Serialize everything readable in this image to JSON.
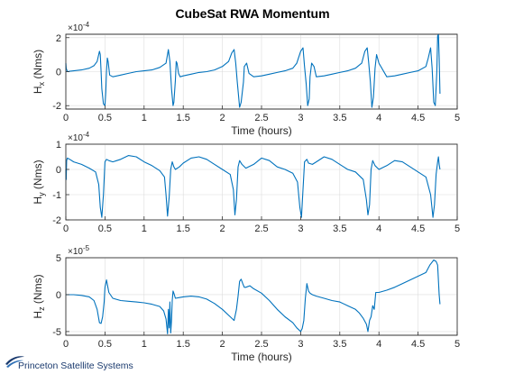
{
  "figure": {
    "title": "CubeSat RWA Momentum",
    "logo_text": "Princeton Satellite Systems",
    "line_color": "#0072bd",
    "logo_color": "#1a3a6e"
  },
  "chart_data": [
    {
      "type": "line",
      "title": "CubeSat RWA Momentum",
      "xlabel": "Time (hours)",
      "ylabel_base": "H",
      "ylabel_sub": "x",
      "ylabel_unit": "(Nms)",
      "exponent_label": "×10",
      "exponent_power": "-4",
      "xlim": [
        0,
        5
      ],
      "ylim": [
        -2.2,
        2.2
      ],
      "xticks": [
        0,
        0.5,
        1,
        1.5,
        2,
        2.5,
        3,
        3.5,
        4,
        4.5,
        5
      ],
      "xtick_labels": [
        "0",
        "0.5",
        "1",
        "1.5",
        "2",
        "2.5",
        "3",
        "3.5",
        "4",
        "4.5",
        "5"
      ],
      "yticks": [
        -2,
        0,
        2
      ],
      "ytick_labels": [
        "-2",
        "0",
        "2"
      ],
      "grid": true,
      "series": [
        {
          "x": [
            0,
            0.005,
            0.02,
            0.05,
            0.1,
            0.2,
            0.3,
            0.36,
            0.4,
            0.43,
            0.44,
            0.45,
            0.46,
            0.48,
            0.5,
            0.51,
            0.52,
            0.53,
            0.54,
            0.56,
            0.6,
            0.7,
            0.8,
            0.9,
            1.0,
            1.1,
            1.2,
            1.28,
            1.31,
            1.33,
            1.35,
            1.37,
            1.38,
            1.4,
            1.41,
            1.42,
            1.44,
            1.46,
            1.5,
            1.6,
            1.7,
            1.8,
            1.9,
            2.0,
            2.08,
            2.12,
            2.15,
            2.17,
            2.19,
            2.22,
            2.24,
            2.27,
            2.28,
            2.31,
            2.34,
            2.4,
            2.5,
            2.6,
            2.7,
            2.8,
            2.9,
            2.95,
            3.0,
            3.03,
            3.05,
            3.07,
            3.09,
            3.11,
            3.12,
            3.14,
            3.17,
            3.2,
            3.3,
            3.4,
            3.5,
            3.6,
            3.7,
            3.78,
            3.82,
            3.85,
            3.87,
            3.89,
            3.91,
            3.93,
            3.95,
            3.97,
            4.0,
            4.1,
            4.2,
            4.3,
            4.4,
            4.5,
            4.6,
            4.63,
            4.66,
            4.68,
            4.7,
            4.72,
            4.74,
            4.75,
            4.76,
            4.77,
            4.78
          ],
          "y": [
            0.5,
            0.2,
            0.0,
            0.02,
            0.05,
            0.1,
            0.2,
            0.35,
            0.6,
            1.2,
            1.0,
            0.0,
            -1.0,
            -1.9,
            -2.0,
            -1.2,
            0.0,
            0.8,
            0.6,
            -0.2,
            -0.3,
            -0.2,
            -0.1,
            0.0,
            0.05,
            0.1,
            0.25,
            0.5,
            1.3,
            0.6,
            -1.0,
            -2.0,
            -1.8,
            -0.5,
            0.6,
            0.5,
            -0.1,
            -0.3,
            -0.25,
            -0.15,
            -0.05,
            0.0,
            0.1,
            0.3,
            0.6,
            1.1,
            1.3,
            0.5,
            -0.6,
            -2.1,
            -1.8,
            -0.6,
            0.3,
            0.5,
            -0.1,
            -0.3,
            -0.25,
            -0.15,
            -0.05,
            0.05,
            0.2,
            0.5,
            1.2,
            1.4,
            0.3,
            -0.7,
            -2.0,
            -1.6,
            -0.3,
            0.5,
            0.3,
            -0.3,
            -0.25,
            -0.15,
            -0.05,
            0.05,
            0.2,
            0.5,
            1.2,
            1.4,
            0.5,
            -0.6,
            -2.1,
            -1.5,
            0.2,
            1.0,
            0.5,
            -0.3,
            -0.25,
            -0.15,
            -0.05,
            0.05,
            0.3,
            0.8,
            1.4,
            0.2,
            -1.8,
            -2.0,
            0.0,
            2.1,
            2.2,
            0.8,
            -1.3
          ]
        }
      ]
    },
    {
      "type": "line",
      "xlabel": "",
      "ylabel_base": "H",
      "ylabel_sub": "y",
      "ylabel_unit": "(Nms)",
      "exponent_label": "×10",
      "exponent_power": "-4",
      "xlim": [
        0,
        5
      ],
      "ylim": [
        -2,
        1
      ],
      "xticks": [
        0,
        0.5,
        1,
        1.5,
        2,
        2.5,
        3,
        3.5,
        4,
        4.5,
        5
      ],
      "xtick_labels": [
        "0",
        "0.5",
        "1",
        "1.5",
        "2",
        "2.5",
        "3",
        "3.5",
        "4",
        "4.5",
        "5"
      ],
      "yticks": [
        -2,
        -1,
        0,
        1
      ],
      "ytick_labels": [
        "-2",
        "-1",
        "0",
        "1"
      ],
      "grid": true,
      "series": [
        {
          "x": [
            0,
            0.005,
            0.01,
            0.02,
            0.05,
            0.1,
            0.2,
            0.3,
            0.38,
            0.42,
            0.44,
            0.46,
            0.48,
            0.5,
            0.52,
            0.55,
            0.6,
            0.7,
            0.8,
            0.9,
            1.0,
            1.1,
            1.2,
            1.26,
            1.28,
            1.3,
            1.32,
            1.34,
            1.36,
            1.38,
            1.4,
            1.45,
            1.5,
            1.6,
            1.7,
            1.8,
            1.9,
            2.0,
            2.1,
            2.14,
            2.16,
            2.18,
            2.2,
            2.22,
            2.25,
            2.3,
            2.4,
            2.5,
            2.6,
            2.7,
            2.8,
            2.9,
            2.96,
            2.99,
            3.01,
            3.03,
            3.05,
            3.08,
            3.1,
            3.15,
            3.2,
            3.3,
            3.4,
            3.5,
            3.6,
            3.7,
            3.8,
            3.84,
            3.86,
            3.88,
            3.9,
            3.92,
            3.95,
            4.0,
            4.1,
            4.2,
            4.3,
            4.4,
            4.5,
            4.6,
            4.66,
            4.69,
            4.71,
            4.73,
            4.75,
            4.76,
            4.77,
            4.78
          ],
          "y": [
            0.0,
            -0.4,
            0.35,
            0.45,
            0.4,
            0.3,
            0.2,
            0.05,
            -0.1,
            -0.6,
            -1.5,
            -1.9,
            -1.0,
            0.3,
            0.4,
            0.35,
            0.3,
            0.4,
            0.55,
            0.5,
            0.3,
            0.15,
            -0.05,
            -0.3,
            -1.0,
            -1.85,
            -1.1,
            0.0,
            0.3,
            0.1,
            0.0,
            0.1,
            0.25,
            0.45,
            0.5,
            0.4,
            0.2,
            0.0,
            -0.2,
            -0.8,
            -1.8,
            -1.2,
            0.1,
            0.35,
            0.2,
            0.05,
            0.2,
            0.45,
            0.35,
            0.1,
            0.0,
            -0.15,
            -0.5,
            -1.5,
            -1.9,
            -0.8,
            0.3,
            0.4,
            0.25,
            0.2,
            0.3,
            0.5,
            0.4,
            0.2,
            0.0,
            -0.1,
            -0.4,
            -1.2,
            -1.8,
            -1.4,
            0.0,
            0.35,
            0.15,
            0.0,
            0.15,
            0.35,
            0.3,
            0.1,
            -0.1,
            -0.3,
            -1.0,
            -1.9,
            -1.4,
            -0.2,
            0.3,
            0.5,
            0.2,
            0.0
          ]
        }
      ]
    },
    {
      "type": "line",
      "xlabel": "Time (hours)",
      "ylabel_base": "H",
      "ylabel_sub": "z",
      "ylabel_unit": "(Nms)",
      "exponent_label": "×10",
      "exponent_power": "-5",
      "xlim": [
        0,
        5
      ],
      "ylim": [
        -5.5,
        5
      ],
      "xticks": [
        0,
        0.5,
        1,
        1.5,
        2,
        2.5,
        3,
        3.5,
        4,
        4.5,
        5
      ],
      "xtick_labels": [
        "0",
        "0.5",
        "1",
        "1.5",
        "2",
        "2.5",
        "3",
        "3.5",
        "4",
        "4.5",
        "5"
      ],
      "yticks": [
        -5,
        0,
        5
      ],
      "ytick_labels": [
        "-5",
        "0",
        "5"
      ],
      "grid": true,
      "series": [
        {
          "x": [
            0,
            0.1,
            0.2,
            0.3,
            0.36,
            0.4,
            0.43,
            0.45,
            0.47,
            0.49,
            0.5,
            0.52,
            0.55,
            0.6,
            0.7,
            0.8,
            0.9,
            1.0,
            1.1,
            1.2,
            1.25,
            1.28,
            1.3,
            1.31,
            1.32,
            1.33,
            1.34,
            1.35,
            1.36,
            1.37,
            1.38,
            1.4,
            1.45,
            1.5,
            1.6,
            1.7,
            1.8,
            1.9,
            2.0,
            2.1,
            2.15,
            2.18,
            2.2,
            2.22,
            2.24,
            2.26,
            2.28,
            2.3,
            2.35,
            2.4,
            2.5,
            2.6,
            2.7,
            2.8,
            2.9,
            2.95,
            3.0,
            3.02,
            3.04,
            3.06,
            3.08,
            3.1,
            3.12,
            3.15,
            3.2,
            3.3,
            3.4,
            3.5,
            3.6,
            3.7,
            3.75,
            3.8,
            3.84,
            3.86,
            3.88,
            3.9,
            3.92,
            3.94,
            3.96,
            4.0,
            4.1,
            4.2,
            4.3,
            4.4,
            4.5,
            4.6,
            4.65,
            4.7,
            4.73,
            4.75,
            4.77,
            4.78
          ],
          "y": [
            0.0,
            0.0,
            -0.1,
            -0.3,
            -0.8,
            -2.0,
            -3.8,
            -3.9,
            -3.0,
            -1.0,
            1.0,
            2.0,
            0.3,
            -0.5,
            -0.8,
            -0.9,
            -1.0,
            -1.1,
            -1.3,
            -1.6,
            -2.2,
            -3.3,
            -5.3,
            -2.0,
            -4.5,
            -1.0,
            -5.2,
            -3.5,
            -0.8,
            0.5,
            0.2,
            -0.5,
            -0.4,
            -0.3,
            -0.2,
            -0.3,
            -0.6,
            -1.2,
            -2.0,
            -3.0,
            -3.5,
            -2.0,
            -0.2,
            1.8,
            2.1,
            1.5,
            1.0,
            1.0,
            1.2,
            0.8,
            0.2,
            -0.8,
            -2.0,
            -3.0,
            -3.8,
            -4.5,
            -5.0,
            -4.6,
            -3.5,
            -0.5,
            1.5,
            0.5,
            0.2,
            0.0,
            -0.2,
            -0.5,
            -0.8,
            -1.0,
            -1.5,
            -2.0,
            -2.5,
            -3.2,
            -4.0,
            -5.0,
            -3.5,
            -3.0,
            -1.5,
            -2.0,
            0.3,
            0.3,
            0.6,
            1.0,
            1.5,
            2.0,
            2.5,
            3.0,
            4.0,
            4.7,
            4.5,
            4.0,
            0.0,
            -1.3
          ]
        }
      ]
    }
  ]
}
